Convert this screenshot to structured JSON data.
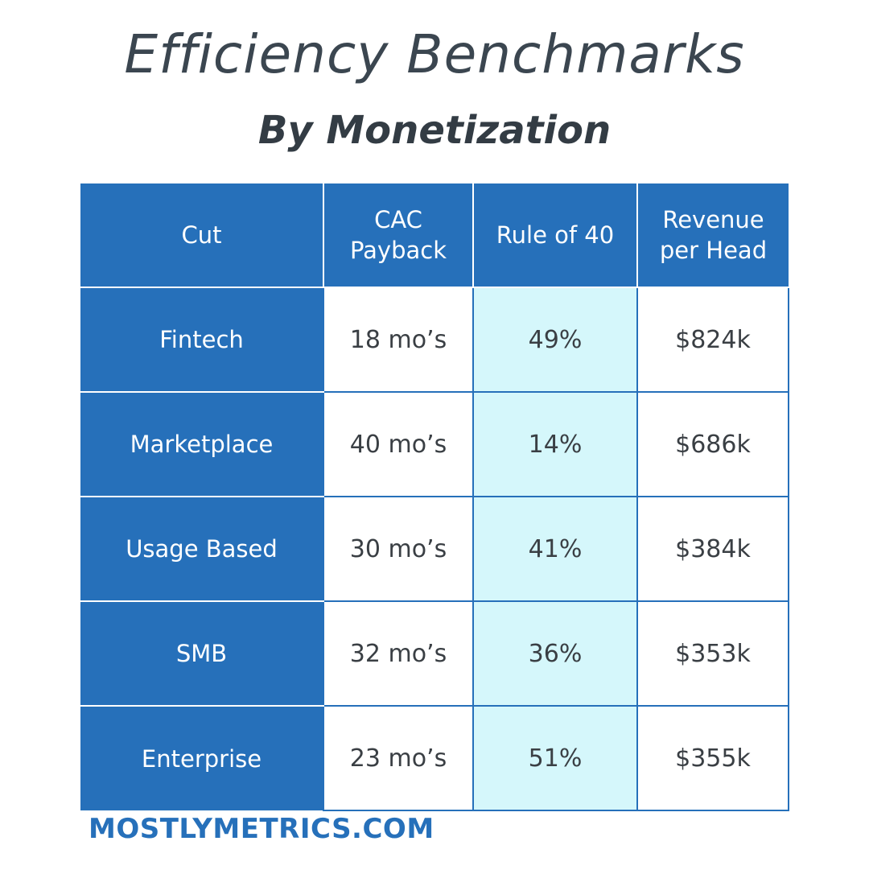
{
  "title": "Efficiency Benchmarks",
  "subtitle": "By Monetization",
  "footer": "MOSTLYMETRICS.COM",
  "colors": {
    "header_bg": "#2670ba",
    "rule_column_bg": "#d5f7fb",
    "title_text": "#3b4650",
    "footer_text": "#2670ba"
  },
  "chart_data": {
    "type": "table",
    "title": "Efficiency Benchmarks",
    "subtitle": "By Monetization",
    "columns": [
      "Cut",
      "CAC Payback",
      "Rule of 40",
      "Revenue per Head"
    ],
    "column_lines": [
      [
        "Cut"
      ],
      [
        "CAC",
        "Payback"
      ],
      [
        "Rule of 40"
      ],
      [
        "Revenue",
        "per Head"
      ]
    ],
    "rows": [
      {
        "cut": "Fintech",
        "cac_payback": "18 mo’s",
        "rule_of_40": "49%",
        "revenue_per_head": "$824k"
      },
      {
        "cut": "Marketplace",
        "cac_payback": "40 mo’s",
        "rule_of_40": "14%",
        "revenue_per_head": "$686k"
      },
      {
        "cut": "Usage Based",
        "cac_payback": "30 mo’s",
        "rule_of_40": "41%",
        "revenue_per_head": "$384k"
      },
      {
        "cut": "SMB",
        "cac_payback": "32 mo’s",
        "rule_of_40": "36%",
        "revenue_per_head": "$353k"
      },
      {
        "cut": "Enterprise",
        "cac_payback": "23 mo’s",
        "rule_of_40": "51%",
        "revenue_per_head": "$355k"
      }
    ]
  }
}
